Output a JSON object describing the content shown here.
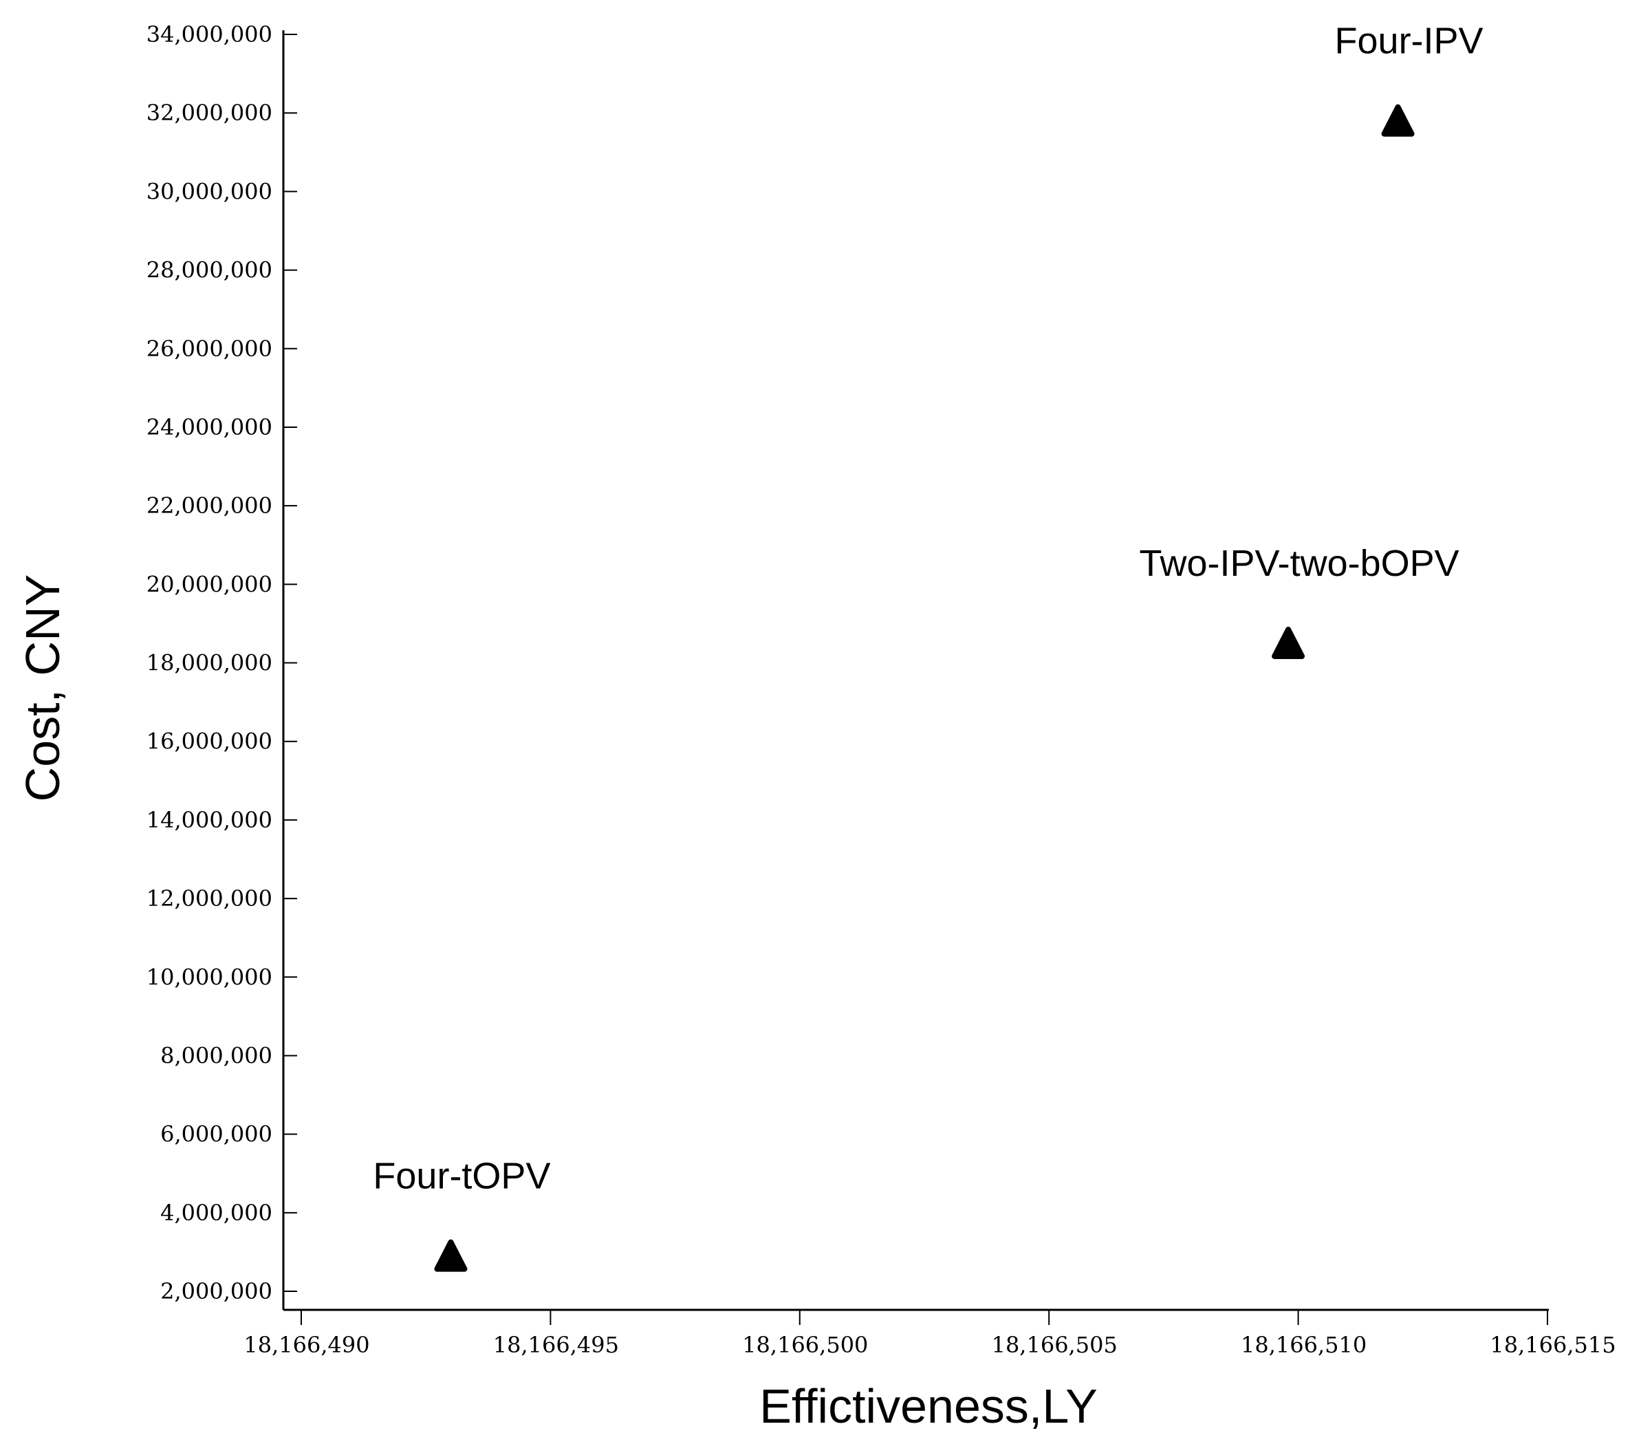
{
  "chart_data": {
    "type": "scatter",
    "title": "",
    "xlabel": "Effictiveness,LY",
    "ylabel": "Cost, CNY",
    "xlim": [
      18166490,
      18166515
    ],
    "ylim": [
      2000000,
      34000000
    ],
    "xticks": [
      18166490,
      18166495,
      18166500,
      18166505,
      18166510,
      18166515
    ],
    "xtick_labels": [
      "18,166,490",
      "18,166,495",
      "18,166,500",
      "18,166,505",
      "18,166,510",
      "18,166,515"
    ],
    "yticks": [
      2000000,
      4000000,
      6000000,
      8000000,
      10000000,
      12000000,
      14000000,
      16000000,
      18000000,
      20000000,
      22000000,
      24000000,
      26000000,
      28000000,
      30000000,
      32000000,
      34000000
    ],
    "ytick_labels": [
      "2,000,000",
      "4,000,000",
      "6,000,000",
      "8,000,000",
      "10,000,000",
      "12,000,000",
      "14,000,000",
      "16,000,000",
      "18,000,000",
      "20,000,000",
      "22,000,000",
      "24,000,000",
      "26,000,000",
      "28,000,000",
      "30,000,000",
      "32,000,000",
      "34,000,000"
    ],
    "grid": false,
    "marker": "triangle",
    "marker_color": "#000000",
    "points": [
      {
        "label": "Four-tOPV",
        "x": 18166493.0,
        "y": 2900000
      },
      {
        "label": "Two-IPV-two-bOPV",
        "x": 18166509.8,
        "y": 18500000
      },
      {
        "label": "Four-IPV",
        "x": 18166512.0,
        "y": 31800000
      }
    ]
  }
}
